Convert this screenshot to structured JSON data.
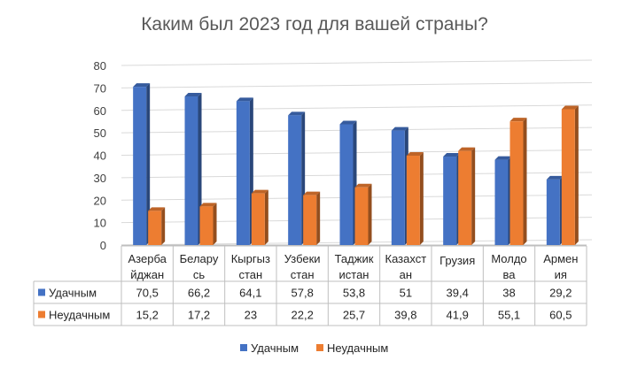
{
  "chart_data": {
    "type": "bar",
    "title": "Каким был 2023 год для вашей страны?",
    "categories": [
      [
        "Азерба",
        "йджан"
      ],
      [
        "Белару",
        "сь"
      ],
      [
        "Кыргыз",
        "стан"
      ],
      [
        "Узбеки",
        "стан"
      ],
      [
        "Таджик",
        "истан"
      ],
      [
        "Казахст",
        "ан"
      ],
      [
        "Грузия"
      ],
      [
        "Молдо",
        "ва"
      ],
      [
        "Армен",
        "ия"
      ]
    ],
    "series": [
      {
        "name": "Удачным",
        "color": "#4472C4",
        "values": [
          70.5,
          66.2,
          64.1,
          57.8,
          53.8,
          51,
          39.4,
          38,
          29.2
        ],
        "labels": [
          "70,5",
          "66,2",
          "64,1",
          "57,8",
          "53,8",
          "51",
          "39,4",
          "38",
          "29,2"
        ]
      },
      {
        "name": "Неудачным",
        "color": "#ED7D31",
        "values": [
          15.2,
          17.2,
          23,
          22.2,
          25.7,
          39.8,
          41.9,
          55.1,
          60.5
        ],
        "labels": [
          "15,2",
          "17,2",
          "23",
          "22,2",
          "25,7",
          "39,8",
          "41,9",
          "55,1",
          "60,5"
        ]
      }
    ],
    "ylim": [
      0,
      80
    ],
    "yticks": [
      0,
      10,
      20,
      30,
      40,
      50,
      60,
      70,
      80
    ],
    "grid": true,
    "data_table": true,
    "legend_position": "bottom",
    "style": "3d-clustered-column"
  }
}
